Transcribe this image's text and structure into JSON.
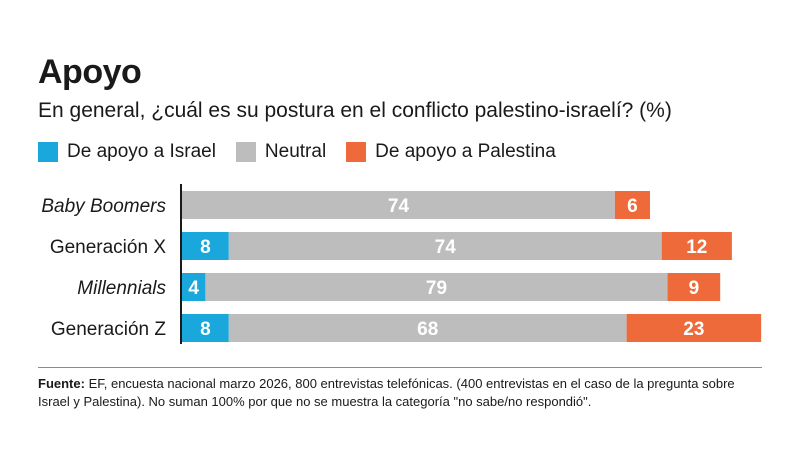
{
  "header": {
    "title": "Apoyo",
    "subtitle": "En general, ¿cuál es su postura en el conflicto palestino-israelí? (%)"
  },
  "legend": [
    {
      "label": "De apoyo a Israel",
      "color": "#1aa7db"
    },
    {
      "label": "Neutral",
      "color": "#bdbdbd"
    },
    {
      "label": "De apoyo a Palestina",
      "color": "#ee6a3b"
    }
  ],
  "chart_data": {
    "type": "bar",
    "orientation": "horizontal",
    "stacked": true,
    "unit": "%",
    "categories": [
      "Baby Boomers",
      "Generación X",
      "Millennials",
      "Generación Z"
    ],
    "italic_categories": [
      true,
      false,
      true,
      false
    ],
    "series": [
      {
        "name": "De apoyo a Israel",
        "color": "#1aa7db",
        "values": [
          0,
          8,
          4,
          8
        ]
      },
      {
        "name": "Neutral",
        "color": "#bdbdbd",
        "values": [
          74,
          74,
          79,
          68
        ]
      },
      {
        "name": "De apoyo a Palestina",
        "color": "#ee6a3b",
        "values": [
          6,
          12,
          9,
          23
        ]
      }
    ]
  },
  "footer": {
    "label": "Fuente:",
    "text": "EF, encuesta nacional marzo 2026, 800 entrevistas telefónicas. (400 entrevistas en el caso de la pregunta sobre Israel y Palestina). No suman 100% por que no se muestra la categoría \"no sabe/no respondió\"."
  }
}
